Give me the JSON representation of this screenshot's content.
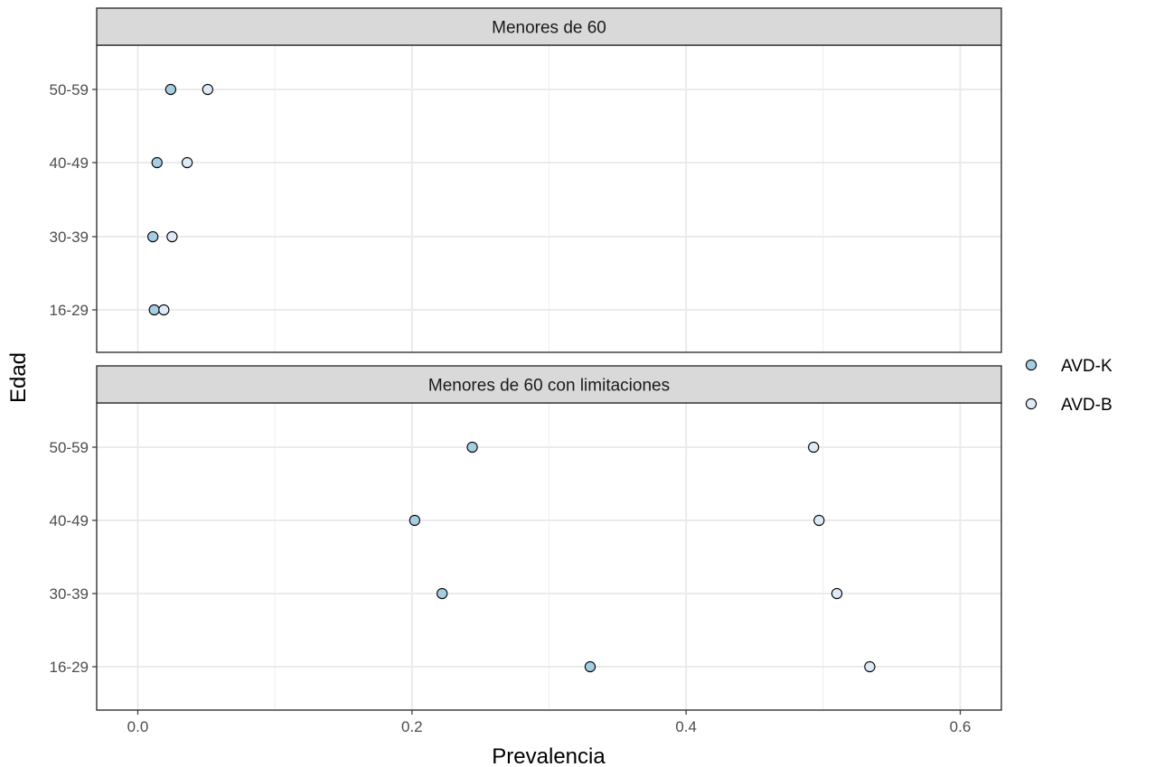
{
  "chart_data": {
    "type": "scatter",
    "xlabel": "Prevalencia",
    "ylabel": "Edad",
    "xlim": [
      -0.03,
      0.63
    ],
    "x_ticks": [
      0.0,
      0.2,
      0.4,
      0.6
    ],
    "x_tick_labels": [
      "0.0",
      "0.2",
      "0.4",
      "0.6"
    ],
    "categories": [
      "16-29",
      "30-39",
      "40-49",
      "50-59"
    ],
    "grid": true,
    "legend_position": "right",
    "series": [
      {
        "name": "AVD-K",
        "color": "#a6cee3"
      },
      {
        "name": "AVD-B",
        "color": "#deebf7"
      }
    ],
    "panels": [
      {
        "title": "Menores de 60",
        "points": {
          "AVD-K": {
            "16-29": 0.012,
            "30-39": 0.011,
            "40-49": 0.014,
            "50-59": 0.024
          },
          "AVD-B": {
            "16-29": 0.019,
            "30-39": 0.025,
            "40-49": 0.036,
            "50-59": 0.051
          }
        }
      },
      {
        "title": "Menores de 60 con limitaciones",
        "points": {
          "AVD-K": {
            "16-29": 0.33,
            "30-39": 0.222,
            "40-49": 0.202,
            "50-59": 0.244
          },
          "AVD-B": {
            "16-29": 0.534,
            "30-39": 0.51,
            "40-49": 0.497,
            "50-59": 0.493
          }
        }
      }
    ]
  }
}
